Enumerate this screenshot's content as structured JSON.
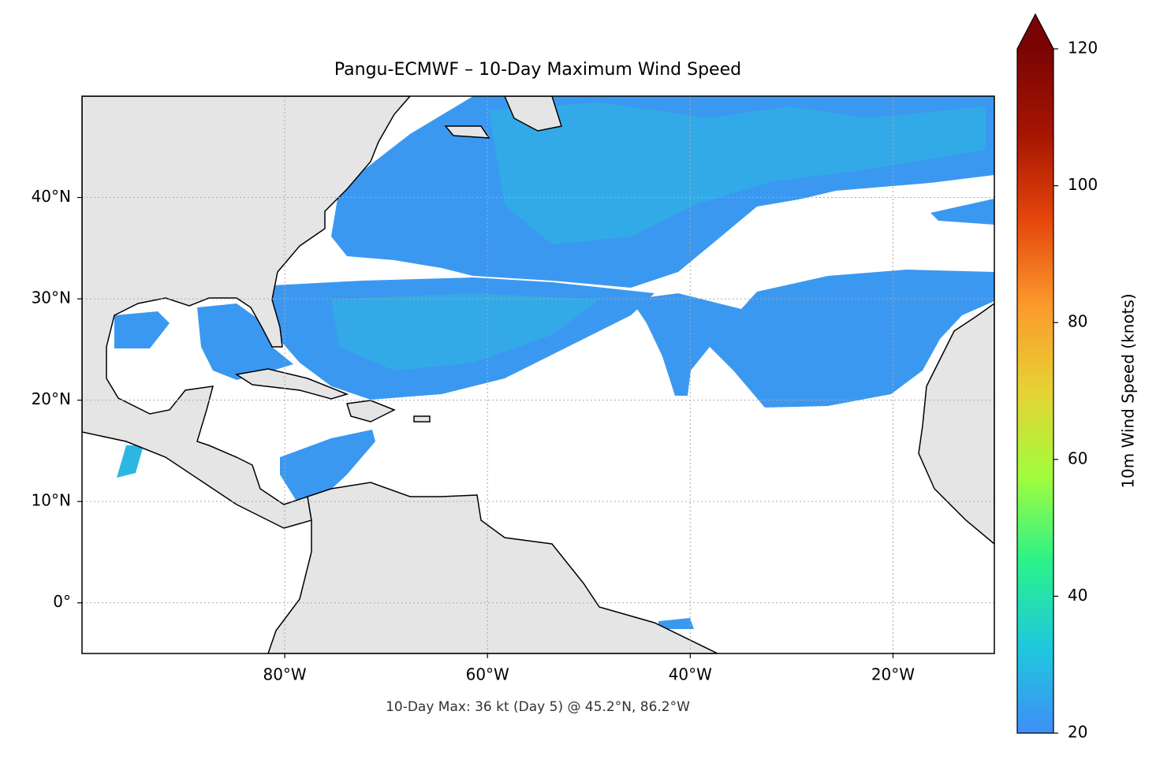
{
  "chart_data": {
    "type": "map",
    "title": "Pangu-ECMWF – 10-Day Maximum Wind Speed",
    "annotation": "10-Day Max: 36 kt (Day 5) @ 45.2°N, 86.2°W",
    "xlim": [
      -100,
      -10
    ],
    "ylim": [
      -5,
      50
    ],
    "xticks": [
      {
        "value": -80,
        "label": "80°W"
      },
      {
        "value": -60,
        "label": "60°W"
      },
      {
        "value": -40,
        "label": "40°W"
      },
      {
        "value": -20,
        "label": "20°W"
      }
    ],
    "yticks": [
      {
        "value": 0,
        "label": "0°"
      },
      {
        "value": 10,
        "label": "10°N"
      },
      {
        "value": 20,
        "label": "20°N"
      },
      {
        "value": 30,
        "label": "30°N"
      },
      {
        "value": 40,
        "label": "40°N"
      }
    ],
    "grid": true,
    "colorbar": {
      "label": "10m Wind Speed (knots)",
      "lim": [
        20,
        120
      ],
      "ticks": [
        20,
        40,
        60,
        80,
        100,
        120
      ],
      "colors": [
        "#3e8ff6",
        "#1fc8de",
        "#2af28a",
        "#a2fc3c",
        "#e6d233",
        "#fc9a2c",
        "#e4460c",
        "#a61502",
        "#7a0403"
      ],
      "extend": "max"
    }
  }
}
